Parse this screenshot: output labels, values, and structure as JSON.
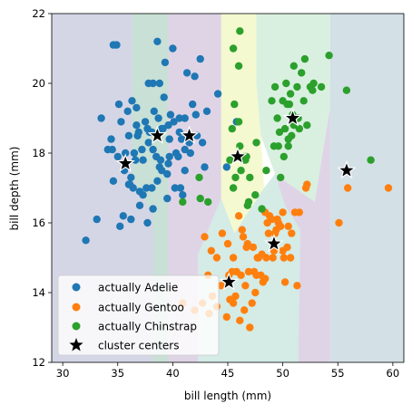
{
  "chart_data": {
    "type": "scatter",
    "xlabel": "bill length (mm)",
    "ylabel": "bill depth (mm)",
    "xlim": [
      29,
      61
    ],
    "ylim": [
      12,
      22
    ],
    "xticks": [
      "30",
      "35",
      "40",
      "45",
      "50",
      "55",
      "60"
    ],
    "yticks": [
      "12",
      "14",
      "16",
      "18",
      "20",
      "22"
    ],
    "grid": false,
    "legend_position": "lower-left",
    "legend": [
      "actually Adelie",
      "actually Gentoo",
      "actually Chinstrap",
      "cluster centers"
    ],
    "colors": {
      "adelie": "#1f77b4",
      "gentoo": "#ff7f0e",
      "chinstrap": "#2ca02c",
      "centers": "#000000",
      "region_purple": "#b8bad6",
      "region_green": "#bfe6cc",
      "region_yellow": "#ecf5b0",
      "region_teal": "#b7ded5",
      "region_mauve": "#c9b8d6",
      "region_grey": "#b5ccd5"
    },
    "series": [
      {
        "name": "actually Adelie",
        "points": [
          [
            34.9,
            21.1
          ],
          [
            32.1,
            15.5
          ],
          [
            33.1,
            16.1
          ],
          [
            33.5,
            19.0
          ],
          [
            34.1,
            18.1
          ],
          [
            34.4,
            18.4
          ],
          [
            34.5,
            18.1
          ],
          [
            34.6,
            21.1
          ],
          [
            34.6,
            17.2
          ],
          [
            35.0,
            17.9
          ],
          [
            35.1,
            19.4
          ],
          [
            35.2,
            15.9
          ],
          [
            35.3,
            18.9
          ],
          [
            35.5,
            16.2
          ],
          [
            35.6,
            17.5
          ],
          [
            35.7,
            18.0
          ],
          [
            35.9,
            19.2
          ],
          [
            36.0,
            18.5
          ],
          [
            36.0,
            17.1
          ],
          [
            36.2,
            17.3
          ],
          [
            36.2,
            16.1
          ],
          [
            36.3,
            19.5
          ],
          [
            36.4,
            17.0
          ],
          [
            36.5,
            18.0
          ],
          [
            36.6,
            17.8
          ],
          [
            36.7,
            19.3
          ],
          [
            36.7,
            18.8
          ],
          [
            36.8,
            18.5
          ],
          [
            36.9,
            18.6
          ],
          [
            37.0,
            16.9
          ],
          [
            37.2,
            18.1
          ],
          [
            37.3,
            17.8
          ],
          [
            37.3,
            16.8
          ],
          [
            37.5,
            18.9
          ],
          [
            37.6,
            17.0
          ],
          [
            37.7,
            18.7
          ],
          [
            37.7,
            16.0
          ],
          [
            37.8,
            18.3
          ],
          [
            37.8,
            20.0
          ],
          [
            37.9,
            18.6
          ],
          [
            38.1,
            18.6
          ],
          [
            38.1,
            17.0
          ],
          [
            38.2,
            18.1
          ],
          [
            38.2,
            20.0
          ],
          [
            38.3,
            19.2
          ],
          [
            38.5,
            17.9
          ],
          [
            38.6,
            21.2
          ],
          [
            38.6,
            17.2
          ],
          [
            38.7,
            19.0
          ],
          [
            38.8,
            17.6
          ],
          [
            38.8,
            20.0
          ],
          [
            38.9,
            17.8
          ],
          [
            39.0,
            17.5
          ],
          [
            39.0,
            18.7
          ],
          [
            39.1,
            18.7
          ],
          [
            39.2,
            19.6
          ],
          [
            39.3,
            20.6
          ],
          [
            39.5,
            17.4
          ],
          [
            39.5,
            16.7
          ],
          [
            39.6,
            18.8
          ],
          [
            39.6,
            17.7
          ],
          [
            39.7,
            18.4
          ],
          [
            39.7,
            17.9
          ],
          [
            39.8,
            19.1
          ],
          [
            40.1,
            18.9
          ],
          [
            40.2,
            17.0
          ],
          [
            40.3,
            18.0
          ],
          [
            40.5,
            17.9
          ],
          [
            40.6,
            18.6
          ],
          [
            40.6,
            19.0
          ],
          [
            40.7,
            17.0
          ],
          [
            40.8,
            18.4
          ],
          [
            40.9,
            16.8
          ],
          [
            41.1,
            18.1
          ],
          [
            41.1,
            19.0
          ],
          [
            41.1,
            17.5
          ],
          [
            41.3,
            20.3
          ],
          [
            41.4,
            18.5
          ],
          [
            41.5,
            18.3
          ],
          [
            41.6,
            18.0
          ],
          [
            41.8,
            19.4
          ],
          [
            42.0,
            20.2
          ],
          [
            42.1,
            19.1
          ],
          [
            42.2,
            18.5
          ],
          [
            42.5,
            20.7
          ],
          [
            42.7,
            18.3
          ],
          [
            42.9,
            17.6
          ],
          [
            43.1,
            19.2
          ],
          [
            40.0,
            21.0
          ],
          [
            44.1,
            19.7
          ],
          [
            45.8,
            18.9
          ],
          [
            44.9,
            17.6
          ],
          [
            36.1,
            17.1
          ],
          [
            37.0,
            16.5
          ],
          [
            38.2,
            16.4
          ]
        ]
      },
      {
        "name": "actually Gentoo",
        "points": [
          [
            40.9,
            13.7
          ],
          [
            42.0,
            13.5
          ],
          [
            42.7,
            13.7
          ],
          [
            43.2,
            14.5
          ],
          [
            43.3,
            13.4
          ],
          [
            43.5,
            15.2
          ],
          [
            43.6,
            13.9
          ],
          [
            44.0,
            13.6
          ],
          [
            44.4,
            14.2
          ],
          [
            44.5,
            15.7
          ],
          [
            44.9,
            13.3
          ],
          [
            45.0,
            15.4
          ],
          [
            45.1,
            14.5
          ],
          [
            45.2,
            13.8
          ],
          [
            45.3,
            13.8
          ],
          [
            45.4,
            14.6
          ],
          [
            45.5,
            15.0
          ],
          [
            45.5,
            13.7
          ],
          [
            45.7,
            13.9
          ],
          [
            45.8,
            14.6
          ],
          [
            46.1,
            13.2
          ],
          [
            46.2,
            14.5
          ],
          [
            46.3,
            15.8
          ],
          [
            46.4,
            15.6
          ],
          [
            46.5,
            13.5
          ],
          [
            46.6,
            14.2
          ],
          [
            46.8,
            15.4
          ],
          [
            46.9,
            14.6
          ],
          [
            47.2,
            13.7
          ],
          [
            47.3,
            15.3
          ],
          [
            47.4,
            14.6
          ],
          [
            47.5,
            14.0
          ],
          [
            47.6,
            14.5
          ],
          [
            47.7,
            15.0
          ],
          [
            47.8,
            15.0
          ],
          [
            48.1,
            15.1
          ],
          [
            48.2,
            14.3
          ],
          [
            48.4,
            14.4
          ],
          [
            48.5,
            15.0
          ],
          [
            48.6,
            16.0
          ],
          [
            48.7,
            15.7
          ],
          [
            48.8,
            16.2
          ],
          [
            49.0,
            16.1
          ],
          [
            49.1,
            15.0
          ],
          [
            49.2,
            15.2
          ],
          [
            49.3,
            15.7
          ],
          [
            49.4,
            15.8
          ],
          [
            49.5,
            16.1
          ],
          [
            49.6,
            16.0
          ],
          [
            49.8,
            15.9
          ],
          [
            50.0,
            15.2
          ],
          [
            50.1,
            15.0
          ],
          [
            50.2,
            14.3
          ],
          [
            50.4,
            15.3
          ],
          [
            50.5,
            15.9
          ],
          [
            50.7,
            15.0
          ],
          [
            50.8,
            15.7
          ],
          [
            51.1,
            16.3
          ],
          [
            51.3,
            14.2
          ],
          [
            51.5,
            16.3
          ],
          [
            52.1,
            17.0
          ],
          [
            52.2,
            17.1
          ],
          [
            50.0,
            16.3
          ],
          [
            48.4,
            16.3
          ],
          [
            46.0,
            16.2
          ],
          [
            55.1,
            16.0
          ],
          [
            55.9,
            17.0
          ],
          [
            59.6,
            17.0
          ],
          [
            44.0,
            15.0
          ],
          [
            47.0,
            13.0
          ],
          [
            46.7,
            15.3
          ],
          [
            48.0,
            14.5
          ],
          [
            42.9,
            15.6
          ]
        ]
      },
      {
        "name": "actually Chinstrap",
        "points": [
          [
            40.9,
            16.6
          ],
          [
            42.4,
            17.3
          ],
          [
            42.5,
            16.7
          ],
          [
            43.2,
            16.6
          ],
          [
            45.2,
            17.8
          ],
          [
            45.4,
            18.7
          ],
          [
            45.5,
            17.0
          ],
          [
            45.6,
            19.4
          ],
          [
            45.7,
            17.3
          ],
          [
            46.0,
            18.9
          ],
          [
            46.1,
            18.2
          ],
          [
            46.2,
            17.5
          ],
          [
            46.4,
            17.8
          ],
          [
            46.5,
            17.9
          ],
          [
            46.6,
            17.8
          ],
          [
            46.7,
            17.9
          ],
          [
            46.8,
            16.5
          ],
          [
            46.9,
            16.6
          ],
          [
            47.0,
            17.3
          ],
          [
            47.5,
            16.8
          ],
          [
            47.6,
            18.3
          ],
          [
            48.1,
            16.4
          ],
          [
            48.5,
            17.5
          ],
          [
            49.0,
            19.5
          ],
          [
            49.2,
            18.2
          ],
          [
            49.3,
            19.9
          ],
          [
            49.5,
            19.0
          ],
          [
            49.6,
            18.2
          ],
          [
            49.7,
            18.6
          ],
          [
            49.8,
            17.3
          ],
          [
            50.0,
            19.5
          ],
          [
            50.1,
            17.9
          ],
          [
            50.2,
            18.7
          ],
          [
            50.3,
            20.0
          ],
          [
            50.4,
            19.4
          ],
          [
            50.5,
            18.4
          ],
          [
            50.6,
            19.4
          ],
          [
            50.7,
            19.7
          ],
          [
            50.8,
            18.5
          ],
          [
            50.9,
            19.1
          ],
          [
            51.0,
            18.8
          ],
          [
            51.3,
            19.9
          ],
          [
            51.4,
            19.0
          ],
          [
            51.5,
            18.7
          ],
          [
            51.7,
            20.3
          ],
          [
            51.9,
            19.5
          ],
          [
            52.0,
            20.7
          ],
          [
            52.2,
            18.8
          ],
          [
            52.5,
            19.9
          ],
          [
            52.7,
            19.8
          ],
          [
            52.8,
            20.0
          ],
          [
            53.5,
            19.9
          ],
          [
            54.2,
            20.8
          ],
          [
            55.8,
            19.8
          ],
          [
            58.0,
            17.8
          ],
          [
            46.1,
            21.5
          ],
          [
            46.0,
            20.5
          ],
          [
            45.5,
            21.0
          ],
          [
            50.5,
            18.2
          ],
          [
            51.0,
            20.5
          ]
        ]
      },
      {
        "name": "cluster centers",
        "points": [
          [
            35.7,
            17.7
          ],
          [
            38.6,
            18.5
          ],
          [
            41.5,
            18.5
          ],
          [
            45.9,
            17.9
          ],
          [
            50.9,
            19.0
          ],
          [
            55.8,
            17.5
          ],
          [
            49.2,
            15.4
          ],
          [
            45.1,
            14.3
          ]
        ]
      }
    ],
    "regions": [
      {
        "color": "region_purple",
        "polygon": [
          [
            29,
            12
          ],
          [
            29,
            22
          ],
          [
            39.6,
            22
          ],
          [
            39.6,
            12
          ]
        ]
      },
      {
        "color": "region_green",
        "polygon": [
          [
            36.3,
            22
          ],
          [
            39.6,
            22
          ],
          [
            39.6,
            12
          ],
          [
            38.2,
            12
          ],
          [
            38.2,
            16.2
          ],
          [
            36.3,
            17.3
          ]
        ]
      },
      {
        "color": "region_mauve",
        "polygon": [
          [
            39.6,
            22
          ],
          [
            44.4,
            22
          ],
          [
            44.4,
            16.7
          ],
          [
            42.3,
            15.1
          ],
          [
            42.3,
            12
          ],
          [
            39.6,
            12
          ]
        ]
      },
      {
        "color": "region_yellow",
        "polygon": [
          [
            44.4,
            22
          ],
          [
            47.6,
            22
          ],
          [
            47.6,
            20.0
          ],
          [
            48.0,
            18.5
          ],
          [
            48.3,
            17.0
          ],
          [
            45.6,
            15.7
          ],
          [
            44.4,
            16.7
          ]
        ]
      },
      {
        "color": "region_teal",
        "polygon": [
          [
            42.3,
            12
          ],
          [
            42.3,
            15.1
          ],
          [
            44.4,
            16.7
          ],
          [
            45.6,
            15.7
          ],
          [
            48.3,
            17.0
          ],
          [
            49.3,
            17.4
          ],
          [
            50.2,
            16.5
          ],
          [
            51.6,
            15.8
          ],
          [
            51.4,
            12
          ]
        ]
      },
      {
        "color": "region_green",
        "polygon": [
          [
            47.6,
            22
          ],
          [
            54.3,
            22
          ],
          [
            54.3,
            19.3
          ],
          [
            52.9,
            16.6
          ],
          [
            49.3,
            17.4
          ],
          [
            48.0,
            18.5
          ],
          [
            47.6,
            20.0
          ]
        ]
      },
      {
        "color": "region_mauve",
        "polygon": [
          [
            49.3,
            17.4
          ],
          [
            52.9,
            16.6
          ],
          [
            54.3,
            19.3
          ],
          [
            54.3,
            12
          ],
          [
            51.4,
            12
          ],
          [
            51.6,
            15.8
          ],
          [
            50.2,
            16.5
          ]
        ]
      },
      {
        "color": "region_grey",
        "polygon": [
          [
            54.3,
            22
          ],
          [
            61,
            22
          ],
          [
            61,
            12
          ],
          [
            54.3,
            12
          ]
        ]
      }
    ]
  }
}
